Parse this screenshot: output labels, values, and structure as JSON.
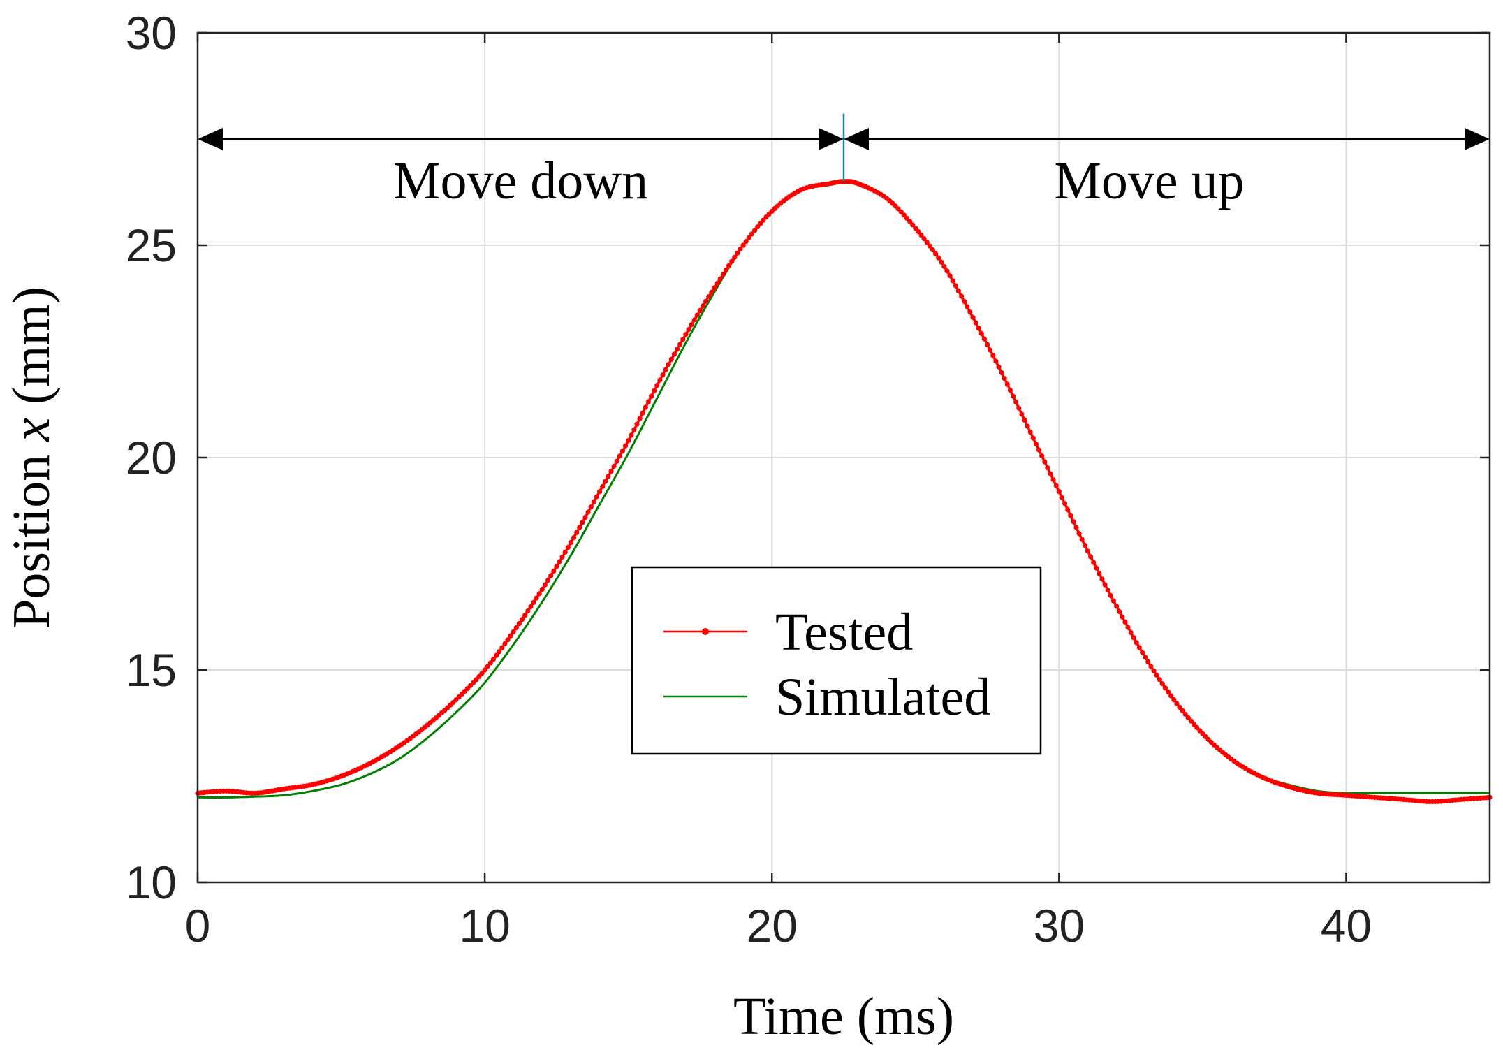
{
  "chart_data": {
    "type": "line",
    "title": "",
    "xlabel": "Time (ms)",
    "ylabel_prefix": "Position ",
    "ylabel_var": "x",
    "ylabel_suffix": " (mm)",
    "xlim": [
      0,
      45
    ],
    "ylim": [
      10,
      30
    ],
    "xticks": [
      0,
      10,
      20,
      30,
      40
    ],
    "xtick_labels": [
      "0",
      "10",
      "20",
      "30",
      "40"
    ],
    "yticks": [
      10,
      15,
      20,
      25,
      30
    ],
    "ytick_labels": [
      "10",
      "15",
      "20",
      "25",
      "30"
    ],
    "grid": true,
    "legend_position": "center",
    "series": [
      {
        "name": "Tested",
        "color": "#ff0000",
        "marker": "dot",
        "x": [
          0,
          1,
          2,
          3,
          4,
          5,
          6,
          7,
          8,
          9,
          10,
          11,
          12,
          13,
          14,
          15,
          16,
          17,
          18,
          19,
          20,
          21,
          22,
          22.5,
          23,
          24,
          25,
          26,
          27,
          28,
          29,
          30,
          31,
          32,
          33,
          34,
          35,
          36,
          37,
          38,
          39,
          40,
          41,
          42,
          43,
          44,
          45
        ],
        "values": [
          12.1,
          12.15,
          12.1,
          12.2,
          12.3,
          12.5,
          12.8,
          13.2,
          13.7,
          14.3,
          15.0,
          15.9,
          16.9,
          18.0,
          19.2,
          20.4,
          21.7,
          22.9,
          24.0,
          25.0,
          25.8,
          26.3,
          26.45,
          26.5,
          26.45,
          26.1,
          25.4,
          24.5,
          23.3,
          22.0,
          20.6,
          19.2,
          17.8,
          16.5,
          15.3,
          14.3,
          13.5,
          12.9,
          12.5,
          12.25,
          12.1,
          12.05,
          12.0,
          11.95,
          11.9,
          11.95,
          12.0
        ]
      },
      {
        "name": "Simulated",
        "color": "#008000",
        "marker": "none",
        "x": [
          0,
          1,
          2,
          3,
          4,
          5,
          6,
          7,
          8,
          9,
          10,
          11,
          12,
          13,
          14,
          15,
          16,
          17,
          18,
          19,
          20,
          21,
          22,
          22.5,
          23,
          24,
          25,
          26,
          27,
          28,
          29,
          30,
          31,
          32,
          33,
          34,
          35,
          36,
          37,
          38,
          39,
          40,
          41,
          42,
          43,
          44,
          45
        ],
        "values": [
          12.0,
          12.0,
          12.02,
          12.05,
          12.15,
          12.3,
          12.55,
          12.9,
          13.4,
          14.0,
          14.7,
          15.6,
          16.6,
          17.7,
          18.9,
          20.1,
          21.4,
          22.7,
          23.9,
          25.0,
          25.8,
          26.3,
          26.45,
          26.5,
          26.45,
          26.1,
          25.4,
          24.5,
          23.3,
          22.0,
          20.6,
          19.2,
          17.8,
          16.5,
          15.3,
          14.3,
          13.5,
          12.9,
          12.5,
          12.3,
          12.15,
          12.1,
          12.1,
          12.1,
          12.1,
          12.1,
          12.1
        ]
      }
    ],
    "annotations": [
      {
        "text": "Move down",
        "from_x": 0,
        "to_x": 22.5,
        "y": 27.5
      },
      {
        "text": "Move up",
        "from_x": 22.5,
        "to_x": 45,
        "y": 27.5
      }
    ],
    "divider": {
      "x": 22.5,
      "y_from": 26.5,
      "y_to": 28.1,
      "color": "#1a7fa0"
    }
  }
}
